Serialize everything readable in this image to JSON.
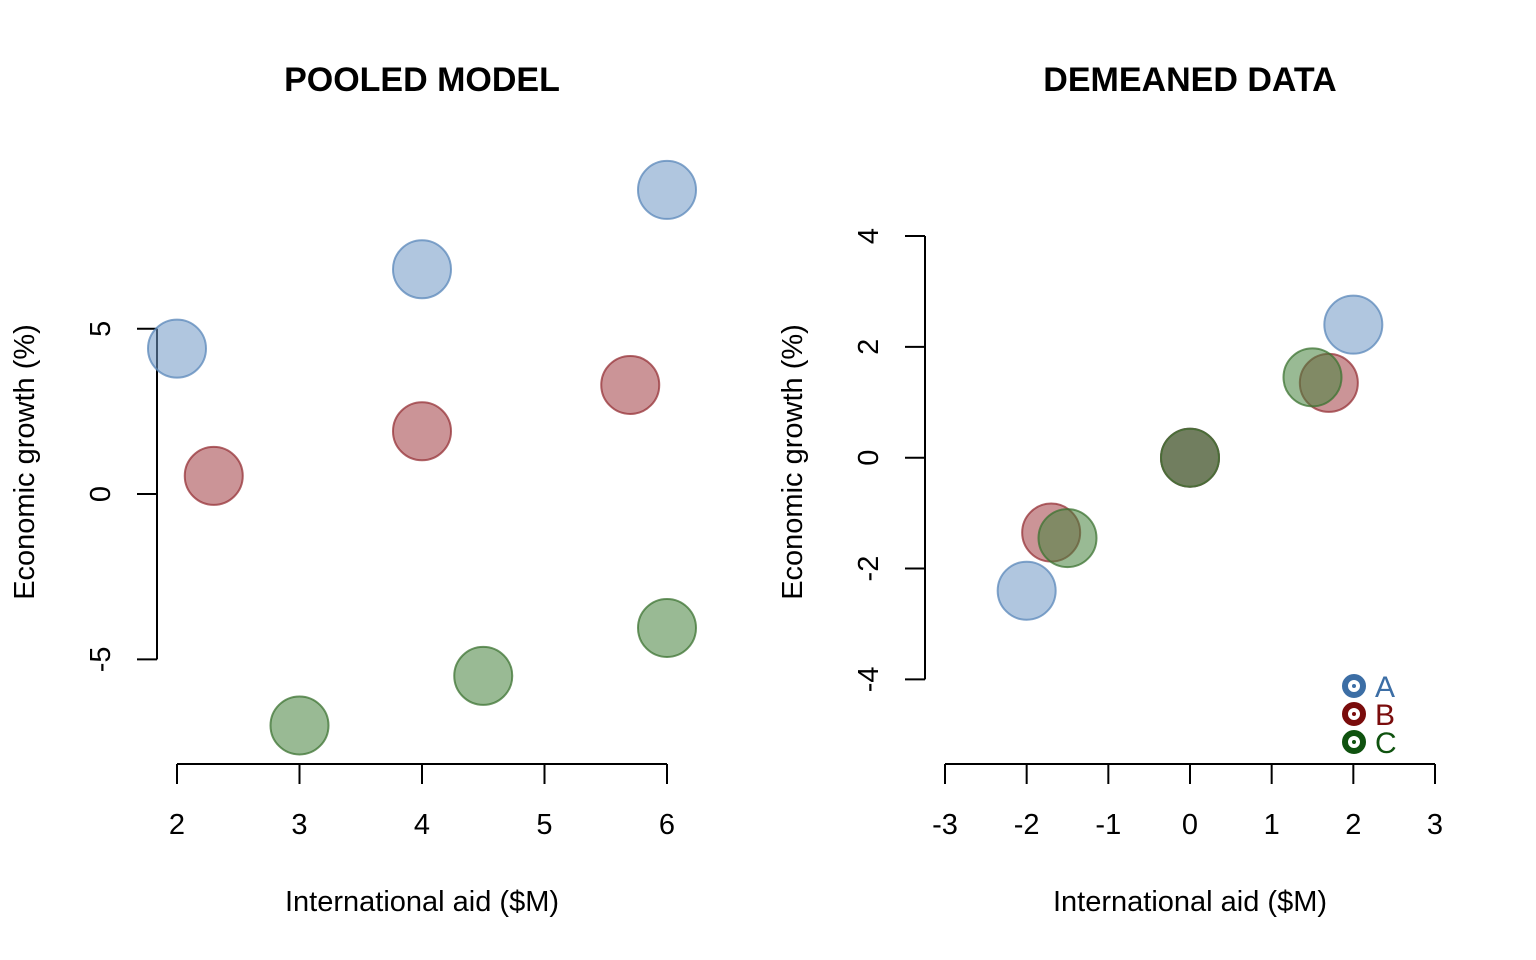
{
  "chart_data": [
    {
      "type": "scatter",
      "title": "POOLED MODEL",
      "xlabel": "International aid ($M)",
      "ylabel": "Economic growth (%)",
      "xlim": [
        2,
        6
      ],
      "ylim": [
        -7.5,
        9.5
      ],
      "xticks": [
        "2",
        "3",
        "4",
        "5",
        "6"
      ],
      "xtick_values": [
        2,
        3,
        4,
        5,
        6
      ],
      "yticks": [
        "-5",
        "0",
        "5"
      ],
      "ytick_values": [
        -5,
        0,
        5
      ],
      "series": [
        {
          "group": "A",
          "points": [
            [
              2,
              4.4
            ],
            [
              4,
              6.8
            ],
            [
              6,
              9.2
            ]
          ]
        },
        {
          "group": "B",
          "points": [
            [
              2.3,
              0.55
            ],
            [
              4,
              1.9
            ],
            [
              5.7,
              3.3
            ]
          ]
        },
        {
          "group": "C",
          "points": [
            [
              3,
              -7.0
            ],
            [
              4.5,
              -5.5
            ],
            [
              6,
              -4.05
            ]
          ]
        }
      ],
      "grid": false
    },
    {
      "type": "scatter",
      "title": "DEMEANED DATA",
      "xlabel": "International aid ($M)",
      "ylabel": "Economic growth (%)",
      "xlim": [
        -3,
        3
      ],
      "ylim": [
        -5.4,
        4
      ],
      "xticks": [
        "-3",
        "-2",
        "-1",
        "0",
        "1",
        "2",
        "3"
      ],
      "xtick_values": [
        -3,
        -2,
        -1,
        0,
        1,
        2,
        3
      ],
      "yticks": [
        "-4",
        "-2",
        "0",
        "2",
        "4"
      ],
      "ytick_values": [
        -4,
        -2,
        0,
        2,
        4
      ],
      "series": [
        {
          "group": "A",
          "points": [
            [
              -2,
              -2.4
            ],
            [
              0,
              0
            ],
            [
              2,
              2.4
            ]
          ]
        },
        {
          "group": "B",
          "points": [
            [
              -1.7,
              -1.35
            ],
            [
              0,
              0
            ],
            [
              1.7,
              1.35
            ]
          ]
        },
        {
          "group": "C",
          "points": [
            [
              -1.5,
              -1.45
            ],
            [
              0,
              0
            ],
            [
              1.5,
              1.45
            ]
          ]
        }
      ],
      "legend": {
        "position": "bottom-right",
        "entries": [
          {
            "label": "A",
            "color": "#3c6ea5"
          },
          {
            "label": "B",
            "color": "#7a0c0c"
          },
          {
            "label": "C",
            "color": "#0f520f"
          }
        ]
      },
      "grid": false
    }
  ],
  "colors": {
    "A_fill": "rgba(112,152,196,0.55)",
    "A_stroke": "rgba(90,135,185,0.75)",
    "B_fill": "rgba(160,60,65,0.55)",
    "B_stroke": "rgba(150,50,55,0.75)",
    "C_fill": "rgba(70,130,60,0.55)",
    "C_stroke": "rgba(60,115,50,0.75)"
  }
}
